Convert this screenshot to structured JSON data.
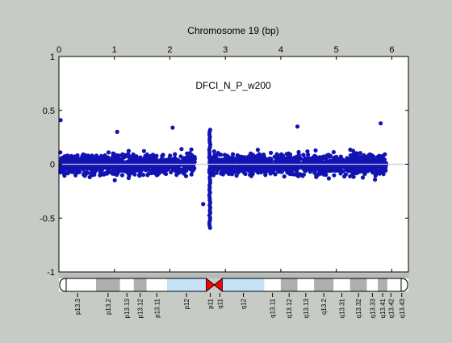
{
  "chart_data": {
    "type": "scatter",
    "title": "Chromosome 19 (bp)",
    "annotation": "DFCI_N_P_w200",
    "x_axis_position": "top",
    "xlim": [
      0,
      6.3
    ],
    "ylim": [
      -1,
      1
    ],
    "x_ticks": [
      0,
      1,
      2,
      3,
      4,
      5,
      6
    ],
    "x_tick_labels": [
      "0",
      "1",
      "2",
      "3",
      "4",
      "5",
      "6"
    ],
    "y_ticks": [
      1,
      0.5,
      0,
      -0.5,
      -1
    ],
    "y_tick_labels": [
      "1",
      "0.5",
      "0",
      "-0.5",
      "-1"
    ],
    "grid": false,
    "colors": {
      "points": "#1313b3",
      "baseline": "#c8c8d8",
      "background": "#c7cbc5",
      "plot_area": "#ffffff",
      "gray_band": "#aeb0ae",
      "blue_band": "#c6e2f9",
      "centromere": "#ff0000"
    },
    "series": [
      {
        "segments": [
          {
            "x_start": 0.0,
            "x_end": 2.45,
            "mean": 0.0,
            "spread": 0.17,
            "count": 900
          },
          {
            "x_start": 2.75,
            "x_end": 5.9,
            "mean": 0.0,
            "spread": 0.17,
            "count": 1100
          }
        ],
        "dip": {
          "x": 2.72,
          "y_min": -0.59,
          "y_max": 0.32,
          "count": 40
        },
        "outliers": [
          {
            "x": 0.03,
            "y": 0.41
          },
          {
            "x": 5.8,
            "y": 0.38
          },
          {
            "x": 2.6,
            "y": -0.37
          },
          {
            "x": 1.05,
            "y": 0.3
          },
          {
            "x": 2.05,
            "y": 0.34
          },
          {
            "x": 4.3,
            "y": 0.35
          }
        ]
      }
    ],
    "ideogram": {
      "bands": [
        {
          "label": "p13.3",
          "x_start": 0.0,
          "x_end": 0.67,
          "stain": "white"
        },
        {
          "label": "p13.2",
          "x_start": 0.67,
          "x_end": 1.1,
          "stain": "gray"
        },
        {
          "label": "p13.13",
          "x_start": 1.1,
          "x_end": 1.35,
          "stain": "white"
        },
        {
          "label": "p13.12",
          "x_start": 1.35,
          "x_end": 1.58,
          "stain": "gray"
        },
        {
          "label": "p13.11",
          "x_start": 1.58,
          "x_end": 1.95,
          "stain": "white"
        },
        {
          "label": "p12",
          "x_start": 1.95,
          "x_end": 2.65,
          "stain": "blue"
        },
        {
          "label": "p11",
          "x_start": 2.65,
          "x_end": 2.75,
          "stain": "centromere"
        },
        {
          "label": "q11",
          "x_start": 2.75,
          "x_end": 2.95,
          "stain": "centromere"
        },
        {
          "label": "q12",
          "x_start": 2.95,
          "x_end": 3.7,
          "stain": "blue"
        },
        {
          "label": "q13.11",
          "x_start": 3.7,
          "x_end": 4.0,
          "stain": "white"
        },
        {
          "label": "q13.12",
          "x_start": 4.0,
          "x_end": 4.3,
          "stain": "gray"
        },
        {
          "label": "q13.13",
          "x_start": 4.3,
          "x_end": 4.6,
          "stain": "white"
        },
        {
          "label": "q13.2",
          "x_start": 4.6,
          "x_end": 4.95,
          "stain": "gray"
        },
        {
          "label": "q13.31",
          "x_start": 4.95,
          "x_end": 5.25,
          "stain": "white"
        },
        {
          "label": "q13.32",
          "x_start": 5.25,
          "x_end": 5.55,
          "stain": "gray"
        },
        {
          "label": "q13.33",
          "x_start": 5.55,
          "x_end": 5.75,
          "stain": "white"
        },
        {
          "label": "q13.41",
          "x_start": 5.75,
          "x_end": 5.92,
          "stain": "gray"
        },
        {
          "label": "q13.42",
          "x_start": 5.92,
          "x_end": 6.05,
          "stain": "white"
        },
        {
          "label": "q13.43",
          "x_start": 6.05,
          "x_end": 6.3,
          "stain": "white"
        }
      ]
    }
  }
}
